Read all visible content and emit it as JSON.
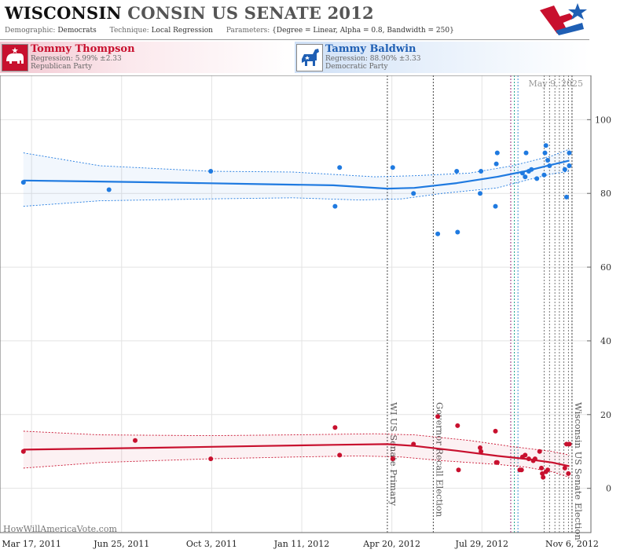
{
  "header": {
    "title_state": "WISCONSIN",
    "title_rest": "CONSIN US SENATE 2012",
    "demographic_label": "Demographic:",
    "demographic_value": "Democrats",
    "technique_label": "Technique:",
    "technique_value": "Local Regression",
    "parameters_label": "Parameters:",
    "parameters_value": "{Degree = Linear, Alpha = 0.8, Bandwidth = 250}"
  },
  "candidates": {
    "republican": {
      "name": "Tommy  Thompson",
      "regression": "Regression: 5.99% ±2.33",
      "party": "Republican Party",
      "color": "#c8102e"
    },
    "democrat": {
      "name": "Tammy Baldwin",
      "regression": "Regression: 88.90% ±3.33",
      "party": "Democratic Party",
      "color": "#1f7ae0"
    }
  },
  "watermark": "HowWillAmericaVote.com",
  "date_stamp": "May 9, 2025",
  "chart_data": {
    "type": "scatter",
    "ylim": [
      -12,
      112
    ],
    "y_ticks": [
      0,
      20,
      40,
      60,
      80,
      100
    ],
    "x_range": [
      "2011-02-10",
      "2012-11-27"
    ],
    "x_ticks": [
      {
        "date": "2011-03-17",
        "label": "Mar 17, 2011"
      },
      {
        "date": "2011-06-25",
        "label": "Jun 25, 2011"
      },
      {
        "date": "2011-10-03",
        "label": "Oct 3, 2011"
      },
      {
        "date": "2012-01-11",
        "label": "Jan 11, 2012"
      },
      {
        "date": "2012-04-20",
        "label": "Apr 20, 2012"
      },
      {
        "date": "2012-07-29",
        "label": "Jul 29, 2012"
      },
      {
        "date": "2012-11-06",
        "label": "Nov 6, 2012"
      }
    ],
    "grid": true,
    "events": [
      {
        "date": "2012-04-15",
        "label": "WI US Senate Primary"
      },
      {
        "date": "2012-06-05",
        "label": "Governor Recall Election"
      },
      {
        "date": "2012-11-06",
        "label": "Wisconsin US Senate Election"
      }
    ],
    "marker_lines": [
      {
        "date": "2012-08-30",
        "color": "#9b2c7a"
      },
      {
        "date": "2012-09-03",
        "color": "#1aa08a"
      },
      {
        "date": "2012-09-07",
        "color": "#3f8fd6"
      }
    ],
    "poll_lines": [
      "2012-10-06",
      "2012-10-12",
      "2012-10-18",
      "2012-10-23",
      "2012-10-28",
      "2012-11-02"
    ],
    "series": [
      {
        "name": "Tammy Baldwin",
        "color": "#1f7ae0",
        "points": [
          [
            "2011-03-08",
            83
          ],
          [
            "2011-06-11",
            81
          ],
          [
            "2011-10-02",
            86
          ],
          [
            "2012-02-17",
            76.5
          ],
          [
            "2012-02-22",
            87
          ],
          [
            "2012-04-21",
            87
          ],
          [
            "2012-05-14",
            80
          ],
          [
            "2012-06-10",
            69
          ],
          [
            "2012-07-02",
            69.5
          ],
          [
            "2012-07-01",
            86
          ],
          [
            "2012-07-27",
            80
          ],
          [
            "2012-07-28",
            86
          ],
          [
            "2012-08-14",
            88
          ],
          [
            "2012-08-15",
            91
          ],
          [
            "2012-08-13",
            76.5
          ],
          [
            "2012-09-12",
            85.5
          ],
          [
            "2012-09-15",
            84.5
          ],
          [
            "2012-09-16",
            91
          ],
          [
            "2012-09-19",
            86
          ],
          [
            "2012-09-22",
            86.5
          ],
          [
            "2012-09-28",
            84
          ],
          [
            "2012-10-06",
            85
          ],
          [
            "2012-10-07",
            91
          ],
          [
            "2012-10-08",
            93
          ],
          [
            "2012-10-10",
            89
          ],
          [
            "2012-10-12",
            87.5
          ],
          [
            "2012-10-29",
            86.5
          ],
          [
            "2012-10-31",
            79
          ],
          [
            "2012-11-03",
            91
          ],
          [
            "2012-11-03",
            87.5
          ]
        ],
        "trend": [
          [
            "2011-03-08",
            83.5
          ],
          [
            "2011-08-01",
            83
          ],
          [
            "2011-12-01",
            82.5
          ],
          [
            "2012-02-15",
            82.2
          ],
          [
            "2012-04-15",
            81.3
          ],
          [
            "2012-05-15",
            81.5
          ],
          [
            "2012-07-01",
            82.8
          ],
          [
            "2012-08-15",
            84.5
          ],
          [
            "2012-09-15",
            86
          ],
          [
            "2012-10-15",
            87.8
          ],
          [
            "2012-11-03",
            88.9
          ]
        ],
        "upper": [
          [
            "2011-03-08",
            91
          ],
          [
            "2011-06-01",
            87.5
          ],
          [
            "2011-10-01",
            86
          ],
          [
            "2012-01-01",
            85.8
          ],
          [
            "2012-04-01",
            84.5
          ],
          [
            "2012-05-15",
            84.8
          ],
          [
            "2012-07-15",
            85.5
          ],
          [
            "2012-09-01",
            87.5
          ],
          [
            "2012-10-15",
            90.2
          ],
          [
            "2012-11-03",
            92
          ]
        ],
        "lower": [
          [
            "2011-03-08",
            76.5
          ],
          [
            "2011-06-01",
            78
          ],
          [
            "2011-10-01",
            78.5
          ],
          [
            "2012-01-01",
            78.8
          ],
          [
            "2012-03-15",
            78.2
          ],
          [
            "2012-05-01",
            78.5
          ],
          [
            "2012-06-15",
            80
          ],
          [
            "2012-08-15",
            81.5
          ],
          [
            "2012-09-15",
            83.5
          ],
          [
            "2012-10-15",
            85.3
          ],
          [
            "2012-11-03",
            86
          ]
        ]
      },
      {
        "name": "Tommy Thompson",
        "color": "#c8102e",
        "points": [
          [
            "2011-03-08",
            10
          ],
          [
            "2011-07-10",
            13
          ],
          [
            "2011-10-02",
            8
          ],
          [
            "2012-02-17",
            16.5
          ],
          [
            "2012-02-22",
            9
          ],
          [
            "2012-04-21",
            8
          ],
          [
            "2012-05-14",
            12
          ],
          [
            "2012-06-10",
            19.5
          ],
          [
            "2012-07-02",
            17
          ],
          [
            "2012-07-03",
            5
          ],
          [
            "2012-07-27",
            11
          ],
          [
            "2012-07-28",
            10
          ],
          [
            "2012-08-13",
            15.5
          ],
          [
            "2012-08-14",
            7
          ],
          [
            "2012-08-15",
            7
          ],
          [
            "2012-09-09",
            5
          ],
          [
            "2012-09-11",
            5
          ],
          [
            "2012-09-12",
            8.5
          ],
          [
            "2012-09-15",
            9
          ],
          [
            "2012-09-19",
            8
          ],
          [
            "2012-09-24",
            7.5
          ],
          [
            "2012-09-26",
            8
          ],
          [
            "2012-10-01",
            10
          ],
          [
            "2012-10-03",
            5.5
          ],
          [
            "2012-10-04",
            4
          ],
          [
            "2012-10-05",
            3
          ],
          [
            "2012-10-08",
            4.5
          ],
          [
            "2012-10-10",
            5
          ],
          [
            "2012-10-29",
            5.5
          ],
          [
            "2012-10-31",
            12
          ],
          [
            "2012-11-02",
            4
          ],
          [
            "2012-11-03",
            12
          ]
        ],
        "trend": [
          [
            "2011-03-08",
            10.5
          ],
          [
            "2011-08-01",
            11
          ],
          [
            "2011-12-01",
            11.5
          ],
          [
            "2012-02-15",
            11.8
          ],
          [
            "2012-04-15",
            12
          ],
          [
            "2012-05-15",
            11.5
          ],
          [
            "2012-07-01",
            10.2
          ],
          [
            "2012-08-15",
            8.8
          ],
          [
            "2012-09-15",
            8
          ],
          [
            "2012-10-15",
            7
          ],
          [
            "2012-11-03",
            6
          ]
        ],
        "upper": [
          [
            "2011-03-08",
            15.5
          ],
          [
            "2011-06-01",
            14.5
          ],
          [
            "2011-10-01",
            14.3
          ],
          [
            "2012-01-01",
            14.5
          ],
          [
            "2012-04-01",
            14.8
          ],
          [
            "2012-05-15",
            14.5
          ],
          [
            "2012-07-15",
            13
          ],
          [
            "2012-09-01",
            11.3
          ],
          [
            "2012-10-15",
            10
          ],
          [
            "2012-11-03",
            9
          ]
        ],
        "lower": [
          [
            "2011-03-08",
            5.5
          ],
          [
            "2011-06-01",
            7
          ],
          [
            "2011-10-01",
            8
          ],
          [
            "2012-01-01",
            8.5
          ],
          [
            "2012-03-15",
            8.8
          ],
          [
            "2012-05-01",
            8.5
          ],
          [
            "2012-06-15",
            7.5
          ],
          [
            "2012-08-15",
            6.5
          ],
          [
            "2012-09-15",
            5.8
          ],
          [
            "2012-10-15",
            4.5
          ],
          [
            "2012-11-03",
            3
          ]
        ]
      }
    ]
  }
}
